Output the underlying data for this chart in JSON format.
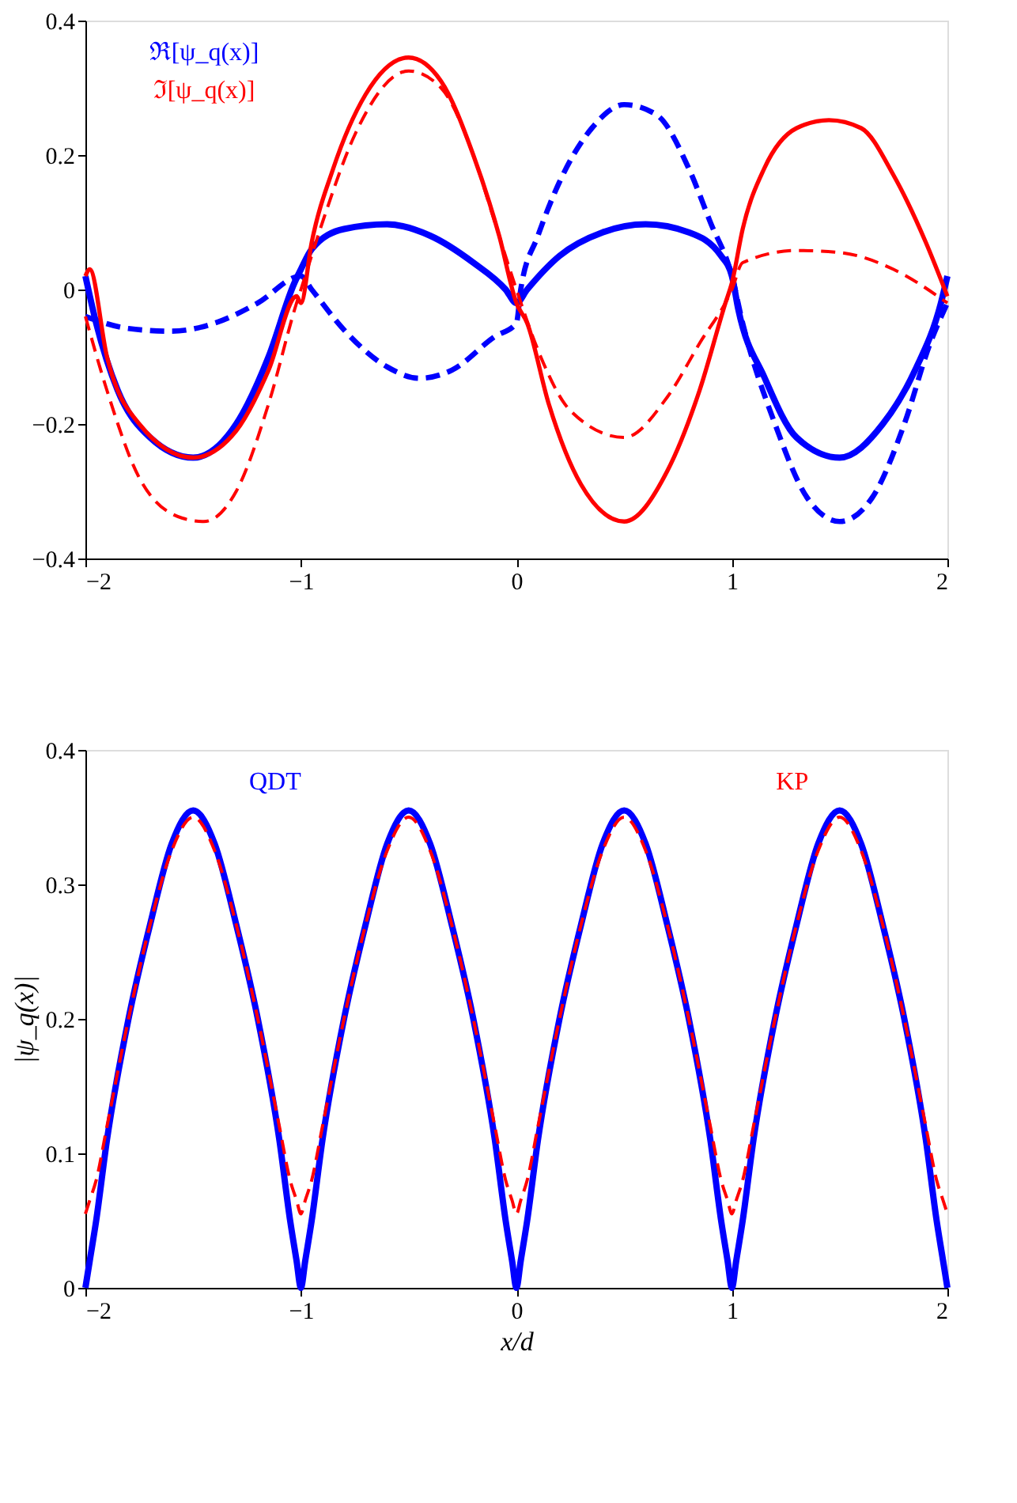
{
  "chart_data": [
    {
      "type": "line",
      "legend": "top left",
      "grid": false,
      "xlim": [
        -2,
        2
      ],
      "xticks": [
        -2,
        -1,
        0,
        1,
        2
      ],
      "ylim": [
        -0.4,
        0.4
      ],
      "yticks": [
        -0.4,
        -0.2,
        0,
        0.2,
        0.4
      ],
      "series": [
        {
          "name": "ℜ[ψ_q(x)]",
          "color": "#0000ff",
          "line_style": "solid",
          "x": [
            -2,
            -1.95,
            -1.85,
            -1.7,
            -1.5,
            -1.3,
            -1.15,
            -1.03,
            -1.0,
            -0.95,
            -0.8,
            -0.6,
            -0.4,
            -0.2,
            -0.05,
            0,
            0.05,
            0.2,
            0.4,
            0.6,
            0.8,
            0.95,
            1.0,
            1.03,
            1.15,
            1.3,
            1.5,
            1.7,
            1.85,
            1.97,
            2.0
          ],
          "values": [
            0.02,
            -0.05,
            -0.15,
            -0.22,
            -0.25,
            -0.2,
            -0.1,
            0.01,
            0.03,
            0.06,
            0.09,
            0.097,
            0.08,
            0.04,
            0.0,
            -0.02,
            0.0,
            0.05,
            0.085,
            0.097,
            0.085,
            0.05,
            0.02,
            -0.03,
            -0.13,
            -0.22,
            -0.25,
            -0.2,
            -0.12,
            -0.02,
            0.02
          ]
        },
        {
          "color": "#0000ff",
          "line_style": "dashed",
          "x": [
            -2,
            -1.8,
            -1.6,
            -1.4,
            -1.2,
            -1.0,
            -0.95,
            -0.8,
            -0.6,
            -0.45,
            -0.3,
            -0.1,
            0,
            0.02,
            0.1,
            0.2,
            0.35,
            0.5,
            0.65,
            0.8,
            0.9,
            1.0,
            1.05,
            1.2,
            1.35,
            1.5,
            1.65,
            1.8,
            1.92,
            2.0
          ],
          "values": [
            -0.04,
            -0.058,
            -0.062,
            -0.05,
            -0.02,
            0.02,
            0.0,
            -0.06,
            -0.115,
            -0.132,
            -0.12,
            -0.07,
            -0.05,
            0.0,
            0.08,
            0.16,
            0.24,
            0.275,
            0.26,
            0.18,
            0.1,
            0.02,
            -0.05,
            -0.2,
            -0.31,
            -0.345,
            -0.31,
            -0.2,
            -0.08,
            -0.02
          ]
        },
        {
          "name": "ℑ[ψ_q(x)]",
          "color": "#ff0000",
          "line_style": "solid",
          "x": [
            -2,
            -1.98,
            -1.9,
            -1.75,
            -1.5,
            -1.3,
            -1.15,
            -1.02,
            -1.0,
            -0.95,
            -0.85,
            -0.7,
            -0.5,
            -0.35,
            -0.2,
            -0.08,
            0,
            0.05,
            0.15,
            0.3,
            0.5,
            0.7,
            0.85,
            0.97,
            1.0,
            1.05,
            1.15,
            1.3,
            1.45,
            1.6,
            1.75,
            1.9,
            2.0
          ],
          "values": [
            0.02,
            0.03,
            -0.1,
            -0.2,
            -0.25,
            -0.21,
            -0.12,
            -0.01,
            -0.02,
            0.07,
            0.18,
            0.29,
            0.345,
            0.31,
            0.2,
            0.08,
            -0.02,
            -0.05,
            -0.17,
            -0.29,
            -0.345,
            -0.27,
            -0.15,
            -0.02,
            0.01,
            0.09,
            0.18,
            0.24,
            0.252,
            0.24,
            0.17,
            0.07,
            -0.01
          ]
        },
        {
          "color": "#ff0000",
          "line_style": "dashed",
          "x": [
            -2,
            -1.9,
            -1.75,
            -1.55,
            -1.45,
            -1.3,
            -1.15,
            -1.02,
            -1.0,
            -0.9,
            -0.75,
            -0.5,
            -0.35,
            -0.2,
            -0.1,
            0,
            0.1,
            0.25,
            0.5,
            0.7,
            0.85,
            1.0,
            1.05,
            1.3,
            1.5,
            1.75,
            2.0
          ],
          "values": [
            -0.04,
            -0.15,
            -0.28,
            -0.34,
            -0.345,
            -0.3,
            -0.17,
            -0.02,
            0.0,
            0.1,
            0.23,
            0.325,
            0.3,
            0.2,
            0.1,
            0.0,
            -0.09,
            -0.18,
            -0.22,
            -0.16,
            -0.08,
            0.0,
            0.04,
            0.058,
            0.055,
            0.03,
            -0.02
          ]
        }
      ]
    },
    {
      "type": "line",
      "legend": "top",
      "grid": false,
      "xlabel": "x/d",
      "ylabel": "|ψ_q(x)|",
      "xlim": [
        -2,
        2
      ],
      "xticks": [
        -2,
        -1,
        0,
        1,
        2
      ],
      "ylim": [
        0,
        0.4
      ],
      "yticks": [
        0,
        0.1,
        0.2,
        0.3,
        0.4
      ],
      "x": [
        -2,
        -1.98,
        -1.95,
        -1.9,
        -1.8,
        -1.7,
        -1.6,
        -1.5,
        -1.4,
        -1.3,
        -1.2,
        -1.1,
        -1.05,
        -1.02,
        -1,
        -0.98,
        -0.95,
        -0.9,
        -0.8,
        -0.7,
        -0.6,
        -0.5,
        -0.4,
        -0.3,
        -0.2,
        -0.1,
        -0.05,
        -0.02,
        0,
        0.02,
        0.05,
        0.1,
        0.2,
        0.3,
        0.4,
        0.5,
        0.6,
        0.7,
        0.8,
        0.9,
        0.95,
        0.98,
        1,
        1.02,
        1.05,
        1.1,
        1.2,
        1.3,
        1.4,
        1.5,
        1.6,
        1.7,
        1.8,
        1.9,
        1.95,
        1.98,
        2
      ],
      "series": [
        {
          "name": "QDT",
          "color": "#0000ff",
          "line_style": "solid",
          "values": [
            0,
            0.02,
            0.05,
            0.11,
            0.2,
            0.27,
            0.33,
            0.355,
            0.33,
            0.27,
            0.2,
            0.11,
            0.05,
            0.02,
            0,
            0.02,
            0.05,
            0.11,
            0.2,
            0.27,
            0.33,
            0.355,
            0.33,
            0.27,
            0.2,
            0.11,
            0.05,
            0.02,
            0,
            0.02,
            0.05,
            0.11,
            0.2,
            0.27,
            0.33,
            0.355,
            0.33,
            0.27,
            0.2,
            0.11,
            0.05,
            0.02,
            0,
            0.02,
            0.05,
            0.11,
            0.2,
            0.27,
            0.33,
            0.355,
            0.33,
            0.27,
            0.2,
            0.11,
            0.05,
            0.02,
            0
          ]
        },
        {
          "name": "KP",
          "color": "#ff0000",
          "line_style": "dashed",
          "values": [
            0.055,
            0.065,
            0.08,
            0.12,
            0.2,
            0.27,
            0.325,
            0.35,
            0.325,
            0.27,
            0.2,
            0.12,
            0.08,
            0.065,
            0.055,
            0.065,
            0.08,
            0.12,
            0.2,
            0.27,
            0.325,
            0.35,
            0.325,
            0.27,
            0.2,
            0.12,
            0.08,
            0.065,
            0.055,
            0.065,
            0.08,
            0.12,
            0.2,
            0.27,
            0.325,
            0.35,
            0.325,
            0.27,
            0.2,
            0.12,
            0.08,
            0.065,
            0.055,
            0.065,
            0.08,
            0.12,
            0.2,
            0.27,
            0.325,
            0.35,
            0.325,
            0.27,
            0.2,
            0.12,
            0.08,
            0.065,
            0.055
          ]
        }
      ]
    }
  ]
}
